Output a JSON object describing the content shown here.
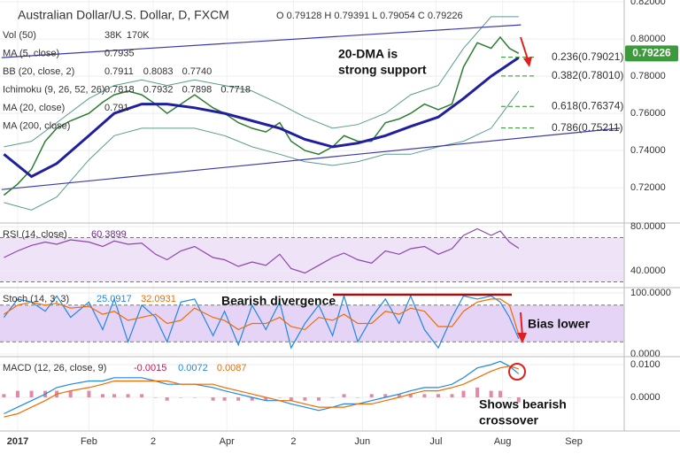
{
  "chart_data": [
    {
      "type": "line",
      "title": "Australian Dollar/U.S. Dollar, D, FXCM",
      "ohlc": "O 0.79128 H 0.79391 L 0.79054 C 0.79226",
      "xlim": [
        -6.7,
        263
      ],
      "xticks": [
        {
          "value": 1,
          "label": "2017"
        },
        {
          "value": 32,
          "label": "Feb"
        },
        {
          "value": 60,
          "label": "2"
        },
        {
          "value": 92,
          "label": "Apr"
        },
        {
          "value": 121,
          "label": "2"
        },
        {
          "value": 151,
          "label": "Jun"
        },
        {
          "value": 183,
          "label": "Jul"
        },
        {
          "value": 212,
          "label": "Aug"
        },
        {
          "value": 243,
          "label": "Sep"
        }
      ],
      "ylim": [
        0.701,
        0.821
      ],
      "yticks": [
        {
          "value": 0.72,
          "label": "0.72000"
        },
        {
          "value": 0.74,
          "label": "0.74000"
        },
        {
          "value": 0.76,
          "label": "0.76000"
        },
        {
          "value": 0.78,
          "label": "0.78000"
        },
        {
          "value": 0.8,
          "label": "0.80000"
        },
        {
          "value": 0.82,
          "label": "0.82000"
        }
      ],
      "grid": true,
      "last_price": 0.79226,
      "last_price_color": "#3c9a3c",
      "indicators": [
        {
          "name": "Vol (50)",
          "readout": [
            {
              "text": "38K",
              "color": "#2a9d2a"
            },
            {
              "text": "170K",
              "color": "#3a6fd8"
            }
          ]
        },
        {
          "name": "MA (5, close)",
          "readout": [
            {
              "text": "0.7935",
              "color": "#333333"
            }
          ]
        },
        {
          "name": "BB (20, close, 2)",
          "readout": [
            {
              "text": "0.7911",
              "color": "#333333"
            },
            {
              "text": "0.8083",
              "color": "#333333"
            },
            {
              "text": "0.7740",
              "color": "#333333"
            }
          ]
        },
        {
          "name": "Ichimoku (9, 26, 52, 26)",
          "readout": [
            {
              "text": "0.7818",
              "color": "#333333"
            },
            {
              "text": "0.7932",
              "color": "#333333"
            },
            {
              "text": "0.7898",
              "color": "#333333"
            },
            {
              "text": "0.7718",
              "color": "#333333"
            }
          ]
        },
        {
          "name": "MA (20, close)",
          "readout": [
            {
              "text": "0.791",
              "color": "#333333"
            }
          ]
        },
        {
          "name": "MA (200, close)",
          "readout": []
        }
      ],
      "series": [
        {
          "color": "#5a9c8f",
          "width": 1,
          "x": [
            -5,
            7,
            18,
            32,
            43,
            55,
            66,
            78,
            91,
            103,
            115,
            126,
            138,
            149,
            161,
            172,
            184,
            195,
            207,
            219
          ],
          "values": [
            0.742,
            0.745,
            0.755,
            0.768,
            0.775,
            0.778,
            0.775,
            0.778,
            0.775,
            0.772,
            0.765,
            0.758,
            0.752,
            0.754,
            0.76,
            0.77,
            0.775,
            0.795,
            0.812,
            0.812
          ]
        },
        {
          "color": "#5a9c8f",
          "width": 1,
          "x": [
            -5,
            7,
            18,
            32,
            43,
            55,
            66,
            78,
            91,
            103,
            115,
            126,
            138,
            149,
            161,
            172,
            184,
            195,
            207,
            219
          ],
          "values": [
            0.712,
            0.708,
            0.715,
            0.735,
            0.748,
            0.752,
            0.752,
            0.752,
            0.748,
            0.742,
            0.738,
            0.734,
            0.732,
            0.734,
            0.738,
            0.738,
            0.742,
            0.745,
            0.752,
            0.772
          ]
        },
        {
          "color": "#3a3aa8",
          "width": 1.2,
          "x": [
            -6,
            220
          ],
          "values": [
            0.79,
            0.8076
          ]
        },
        {
          "color": "#3a3aa8",
          "width": 1.2,
          "x": [
            -6,
            263
          ],
          "values": [
            0.719,
            0.752
          ]
        },
        {
          "color": "#2e7d32",
          "width": 1.5,
          "x": [
            -5,
            1,
            7,
            13,
            18,
            24,
            32,
            38,
            43,
            49,
            55,
            61,
            66,
            72,
            78,
            86,
            91,
            97,
            103,
            109,
            115,
            120,
            126,
            132,
            138,
            143,
            149,
            155,
            161,
            167,
            172,
            178,
            184,
            190,
            195,
            201,
            207,
            211,
            215,
            219
          ],
          "values": [
            0.716,
            0.722,
            0.73,
            0.745,
            0.752,
            0.756,
            0.76,
            0.766,
            0.77,
            0.772,
            0.77,
            0.765,
            0.76,
            0.765,
            0.77,
            0.763,
            0.76,
            0.755,
            0.752,
            0.75,
            0.755,
            0.745,
            0.74,
            0.738,
            0.742,
            0.748,
            0.745,
            0.745,
            0.755,
            0.757,
            0.76,
            0.765,
            0.762,
            0.765,
            0.785,
            0.798,
            0.795,
            0.801,
            0.795,
            0.7923
          ]
        },
        {
          "color": "#1f1fa0",
          "width": 3,
          "x": [
            -5,
            7,
            18,
            32,
            43,
            55,
            66,
            78,
            91,
            103,
            115,
            126,
            138,
            149,
            161,
            172,
            184,
            195,
            207,
            219
          ],
          "values": [
            0.738,
            0.726,
            0.733,
            0.748,
            0.76,
            0.765,
            0.765,
            0.763,
            0.76,
            0.756,
            0.752,
            0.746,
            0.742,
            0.744,
            0.748,
            0.753,
            0.758,
            0.768,
            0.78,
            0.79
          ]
        }
      ],
      "fib_levels": [
        {
          "value": 0.79021,
          "label": "0.236(0.79021)"
        },
        {
          "value": 0.7801,
          "label": "0.382(0.78010)"
        },
        {
          "value": 0.76374,
          "label": "0.618(0.76374)"
        },
        {
          "value": 0.75211,
          "label": "0.786(0.75211)"
        }
      ],
      "fib_color": "#2e8b2e",
      "annotations": [
        {
          "lines": [
            "20-DMA is",
            "strong support"
          ]
        }
      ]
    },
    {
      "type": "line",
      "title": "RSI (14, close)",
      "readout": [
        {
          "text": "60.3899",
          "color": "#7b1fa2"
        }
      ],
      "ylim": [
        24.8,
        82.4
      ],
      "yticks": [
        {
          "value": 80,
          "label": "80.0000"
        },
        {
          "value": 40,
          "label": "40.0000"
        }
      ],
      "bands": [
        70,
        30
      ],
      "band_color": "#efe3f8",
      "x": [
        -5,
        1,
        7,
        13,
        18,
        24,
        32,
        38,
        43,
        49,
        55,
        61,
        66,
        72,
        78,
        86,
        91,
        97,
        103,
        109,
        115,
        120,
        126,
        132,
        138,
        143,
        149,
        155,
        161,
        167,
        172,
        178,
        184,
        190,
        195,
        201,
        207,
        211,
        215,
        219
      ],
      "series": [
        {
          "color": "#8e44ad",
          "width": 1.2,
          "values": [
            52,
            58,
            63,
            66,
            64,
            68,
            66,
            62,
            67,
            64,
            65,
            55,
            50,
            58,
            62,
            52,
            50,
            44,
            48,
            45,
            55,
            42,
            38,
            45,
            52,
            56,
            50,
            47,
            58,
            55,
            60,
            62,
            55,
            60,
            72,
            78,
            72,
            76,
            66,
            60.3899
          ]
        }
      ],
      "annotations": []
    },
    {
      "type": "line",
      "title": "Stoch (14, 3, 3)",
      "readout": [
        {
          "text": "25.0917",
          "color": "#1e88e5"
        },
        {
          "text": "32.0931",
          "color": "#ef6c00"
        }
      ],
      "ylim": [
        -4.3,
        107.2
      ],
      "yticks": [
        {
          "value": 100,
          "label": "100.0000"
        },
        {
          "value": 0,
          "label": "0.0000"
        }
      ],
      "bands": [
        80,
        20
      ],
      "band_color": "#e6d4f7",
      "x": [
        -5,
        1,
        7,
        13,
        18,
        24,
        32,
        38,
        43,
        49,
        55,
        61,
        66,
        72,
        78,
        86,
        91,
        97,
        103,
        109,
        115,
        120,
        126,
        132,
        138,
        143,
        149,
        155,
        161,
        167,
        172,
        178,
        184,
        190,
        195,
        201,
        207,
        211,
        215,
        219
      ],
      "series": [
        {
          "color": "#1e88e5",
          "width": 1.2,
          "values": [
            60,
            90,
            85,
            70,
            95,
            60,
            85,
            40,
            90,
            20,
            80,
            60,
            20,
            85,
            90,
            30,
            70,
            15,
            80,
            40,
            85,
            10,
            50,
            80,
            30,
            95,
            20,
            60,
            90,
            50,
            95,
            40,
            10,
            60,
            95,
            90,
            95,
            85,
            60,
            25.0917
          ]
        },
        {
          "color": "#ef6c00",
          "width": 1.2,
          "values": [
            65,
            80,
            85,
            80,
            83,
            75,
            78,
            65,
            70,
            55,
            60,
            65,
            50,
            55,
            75,
            60,
            55,
            40,
            50,
            50,
            60,
            45,
            40,
            60,
            55,
            65,
            50,
            50,
            70,
            65,
            75,
            70,
            45,
            45,
            70,
            85,
            90,
            90,
            80,
            32.0931
          ]
        }
      ],
      "annotations": [
        {
          "lines": [
            "Bearish divergence"
          ]
        },
        {
          "lines": [
            "Bias lower"
          ]
        }
      ]
    },
    {
      "type": "line",
      "title": "MACD (12, 26, close, 9)",
      "readout": [
        {
          "text": "-0.0015",
          "color": "#c2185b"
        },
        {
          "text": "0.0072",
          "color": "#1e88e5"
        },
        {
          "text": "0.0087",
          "color": "#ef6c00"
        }
      ],
      "ylim": [
        -0.01027,
        0.01216
      ],
      "yticks": [
        {
          "value": 0.01,
          "label": "0.0100"
        },
        {
          "value": 0,
          "label": "0.0000"
        }
      ],
      "x": [
        -5,
        1,
        7,
        13,
        18,
        24,
        32,
        38,
        43,
        49,
        55,
        61,
        66,
        72,
        78,
        86,
        91,
        97,
        103,
        109,
        115,
        120,
        126,
        132,
        138,
        143,
        149,
        155,
        161,
        167,
        172,
        178,
        184,
        190,
        195,
        201,
        207,
        211,
        215,
        219
      ],
      "series": [
        {
          "type": "histogram",
          "color": "#e08aa8",
          "values": [
            0.001,
            0.002,
            0.002,
            0.002,
            0.002,
            0.002,
            0.002,
            0.001,
            0.001,
            0.001,
            0.001,
            0,
            -0.001,
            0,
            0,
            -0.001,
            -0.001,
            -0.001,
            -0.001,
            -0.001,
            0,
            -0.001,
            -0.001,
            -0.001,
            0,
            0.001,
            0,
            0.001,
            0.001,
            0.001,
            0.001,
            0.001,
            0.001,
            0.001,
            0.002,
            0.003,
            0.002,
            0.002,
            0,
            -0.0015
          ]
        },
        {
          "color": "#1e88e5",
          "width": 1.2,
          "values": [
            -0.005,
            -0.003,
            -0.001,
            0.001,
            0.003,
            0.004,
            0.005,
            0.005,
            0.006,
            0.006,
            0.006,
            0.005,
            0.004,
            0.004,
            0.004,
            0.003,
            0.002,
            0.001,
            0,
            -0.001,
            -0.001,
            -0.002,
            -0.003,
            -0.004,
            -0.003,
            -0.002,
            -0.002,
            -0.001,
            0,
            0.001,
            0.002,
            0.003,
            0.003,
            0.004,
            0.006,
            0.009,
            0.01,
            0.011,
            0.0095,
            0.0072
          ]
        },
        {
          "color": "#ef6c00",
          "width": 1.2,
          "values": [
            -0.006,
            -0.005,
            -0.003,
            -0.001,
            0.001,
            0.002,
            0.003,
            0.004,
            0.005,
            0.005,
            0.005,
            0.005,
            0.005,
            0.004,
            0.004,
            0.004,
            0.003,
            0.002,
            0.001,
            0,
            -0.001,
            -0.001,
            -0.002,
            -0.003,
            -0.003,
            -0.003,
            -0.002,
            -0.002,
            -0.001,
            0,
            0.001,
            0.002,
            0.002,
            0.003,
            0.004,
            0.006,
            0.008,
            0.009,
            0.0095,
            0.0087
          ]
        }
      ],
      "annotations": [
        {
          "lines": [
            "Shows bearish",
            "crossover"
          ]
        }
      ]
    }
  ]
}
